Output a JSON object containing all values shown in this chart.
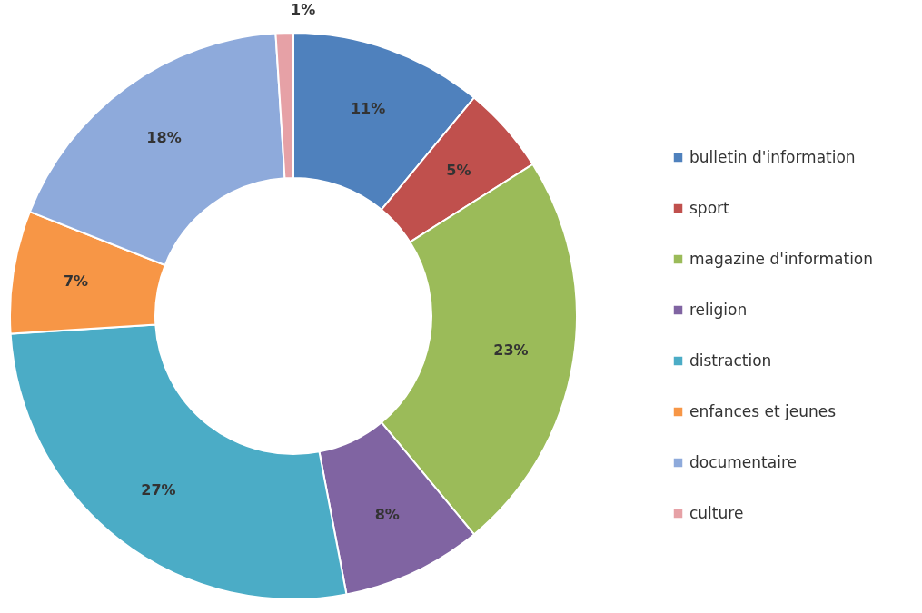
{
  "chart_data": {
    "type": "donut",
    "categories": [
      "bulletin d'information",
      "sport",
      "magazine d'information",
      "religion",
      "distraction",
      "enfances et jeunes",
      "documentaire",
      "culture"
    ],
    "values": [
      11,
      5,
      23,
      8,
      27,
      7,
      18,
      1
    ],
    "value_labels": [
      "11%",
      "5%",
      "23%",
      "8%",
      "27%",
      "7%",
      "18%",
      "1%"
    ],
    "colors": [
      "#4f81bd",
      "#c0504d",
      "#9bbb59",
      "#8064a2",
      "#4bacc6",
      "#f79646",
      "#8eaadb",
      "#e6a1a6"
    ],
    "legend": "right"
  }
}
